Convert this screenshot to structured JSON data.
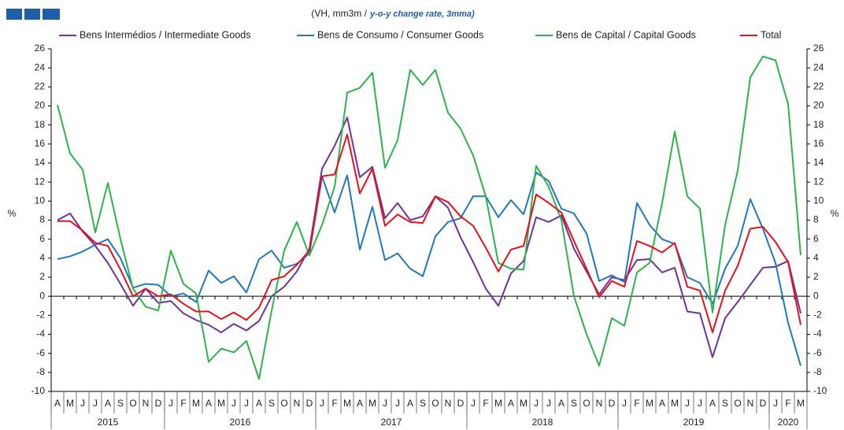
{
  "chart_data": {
    "type": "line",
    "subtitle": "(VH, mm3m /",
    "subtitle_emphasis": "y-o-y change rate, 3mma)",
    "y_label": "%",
    "y2_label": "%",
    "categories": [
      "A",
      "M",
      "J",
      "J",
      "A",
      "S",
      "O",
      "N",
      "D",
      "J",
      "F",
      "M",
      "A",
      "M",
      "J",
      "J",
      "A",
      "S",
      "O",
      "N",
      "D",
      "J",
      "F",
      "M",
      "A",
      "M",
      "J",
      "J",
      "A",
      "S",
      "O",
      "N",
      "D",
      "J",
      "F",
      "M",
      "A",
      "M",
      "J",
      "J",
      "A",
      "S",
      "O",
      "N",
      "D",
      "J",
      "F",
      "M",
      "A",
      "M",
      "J",
      "J",
      "A",
      "S",
      "O",
      "N",
      "D",
      "J",
      "F",
      "M"
    ],
    "year_groups": [
      {
        "label": "2015",
        "span": 9
      },
      {
        "label": "2016",
        "span": 12
      },
      {
        "label": "2017",
        "span": 12
      },
      {
        "label": "2018",
        "span": 12
      },
      {
        "label": "2019",
        "span": 12
      },
      {
        "label": "2020",
        "span": 3
      }
    ],
    "ylim": [
      -10,
      26
    ],
    "yticks": [
      -10,
      -8,
      -6,
      -4,
      -2,
      0,
      2,
      4,
      6,
      8,
      10,
      12,
      14,
      16,
      18,
      20,
      22,
      24,
      26
    ],
    "y2lim": [
      -10,
      26
    ],
    "y2ticks": [
      -10,
      -8,
      -6,
      -4,
      -2,
      0,
      2,
      4,
      6,
      8,
      10,
      12,
      14,
      16,
      18,
      20,
      22,
      24,
      26
    ],
    "legend": "top",
    "series": [
      {
        "name": "Bens Intermédios / Intermediate Goods",
        "color": "#7030a0",
        "values": [
          8,
          8.7,
          6.8,
          5.3,
          3.5,
          1.3,
          -1,
          0.8,
          -0.7,
          -0.5,
          -1.8,
          -2.5,
          -3,
          -3.8,
          -2.9,
          -3.6,
          -2.6,
          0,
          1,
          2.6,
          5,
          13.4,
          15.8,
          18.8,
          12.5,
          13.6,
          8.2,
          9.8,
          8,
          8.4,
          10.5,
          9.3,
          6.2,
          3.6,
          0.8,
          -1,
          2.4,
          3.7,
          8.3,
          7.8,
          8.5,
          5,
          2.6,
          0.2,
          2,
          1.7,
          3.8,
          3.9,
          2.5,
          3,
          -1.6,
          -1.8,
          -6.4,
          -2.3,
          -0.6,
          1.2,
          3,
          3.1,
          3.7,
          -1.8
        ]
      },
      {
        "name": "Bens de Consumo / Consumer Goods",
        "color": "#1f78c1",
        "values": [
          3.9,
          4.2,
          4.7,
          5.4,
          6,
          4,
          0.9,
          1.3,
          1.2,
          0,
          0.3,
          -0.6,
          2.7,
          1.4,
          2.1,
          0.4,
          3.9,
          4.8,
          3,
          3.4,
          4.5,
          12.6,
          8.8,
          12.7,
          4.9,
          9.4,
          3.8,
          4.5,
          2.9,
          2.1,
          6.3,
          7.8,
          8.2,
          10.5,
          10.5,
          8.3,
          10.1,
          8.6,
          13,
          12.1,
          9.2,
          8.7,
          6.6,
          1.6,
          2.2,
          1.5,
          9.8,
          7.5,
          6,
          5.5,
          2,
          1.4,
          -0.8,
          2.9,
          5.3,
          10.2,
          7.1,
          3.5,
          -2.8,
          -7.3
        ]
      },
      {
        "name": "Bens de Capital / Capital Goods",
        "color": "#2eb34b",
        "values": [
          20.1,
          15,
          13.3,
          6.7,
          11.9,
          6,
          0.8,
          -1.1,
          -1.5,
          4.8,
          1.3,
          0.3,
          -6.9,
          -5.5,
          -5.9,
          -4.7,
          -8.7,
          -1.5,
          4.8,
          7.8,
          4.3,
          7.5,
          11.5,
          21.4,
          21.9,
          23.5,
          13.5,
          16.4,
          23.8,
          22.2,
          23.8,
          19.3,
          17.6,
          14.8,
          10.5,
          3.5,
          2.9,
          2.8,
          13.7,
          11.5,
          8,
          0,
          -4,
          -7.3,
          -2.3,
          -3.1,
          2.5,
          3.5,
          9.8,
          17.3,
          10.5,
          9.2,
          -1.7,
          7.5,
          13.2,
          23,
          25.2,
          24.8,
          20.2,
          4.3
        ]
      },
      {
        "name": "Total",
        "color": "#e8101a",
        "values": [
          7.9,
          7.9,
          6.9,
          5.6,
          5.3,
          2.8,
          0,
          0.8,
          0,
          0.2,
          -0.8,
          -1.6,
          -1.6,
          -2.4,
          -1.7,
          -2.5,
          -1.2,
          1.7,
          2.1,
          3.3,
          4.8,
          12.6,
          12.8,
          17,
          10.8,
          13.4,
          7.4,
          8.6,
          7.8,
          7.7,
          10.5,
          9.9,
          8.4,
          7.4,
          5.1,
          2.6,
          4.9,
          5.3,
          10.7,
          9.8,
          8.8,
          5.8,
          2.9,
          -0.1,
          1.6,
          1,
          5.8,
          5.3,
          4.6,
          5.6,
          1,
          0.6,
          -3.8,
          0.6,
          3.2,
          7.1,
          7.3,
          5.7,
          3.6,
          -3
        ]
      }
    ]
  }
}
